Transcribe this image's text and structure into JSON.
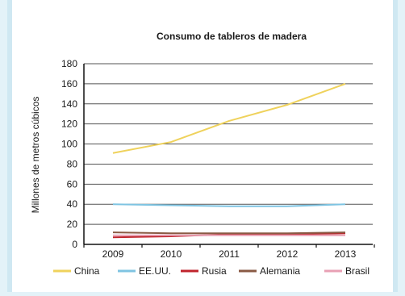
{
  "chart_data": {
    "type": "line",
    "title": "Consumo de tableros de madera",
    "xlabel": "",
    "ylabel": "Millones de metros cúbicos",
    "x": [
      "2009",
      "2010",
      "2011",
      "2012",
      "2013"
    ],
    "ylim": [
      0,
      180
    ],
    "yticks": [
      0,
      20,
      40,
      60,
      80,
      100,
      120,
      140,
      160,
      180
    ],
    "grid": true,
    "legend_position": "bottom",
    "series": [
      {
        "name": "China",
        "color": "#efd25c",
        "values": [
          91,
          102,
          123,
          139,
          160
        ]
      },
      {
        "name": "EE.UU.",
        "color": "#7fc4e2",
        "values": [
          40,
          39,
          38,
          38,
          40
        ]
      },
      {
        "name": "Rusia",
        "color": "#c0242c",
        "values": [
          7,
          8,
          10,
          10,
          11
        ]
      },
      {
        "name": "Alemania",
        "color": "#8a5a44",
        "values": [
          12,
          11,
          11,
          11,
          12
        ]
      },
      {
        "name": "Brasil",
        "color": "#e8a0b4",
        "values": [
          9,
          9,
          9,
          9,
          9
        ]
      }
    ]
  }
}
